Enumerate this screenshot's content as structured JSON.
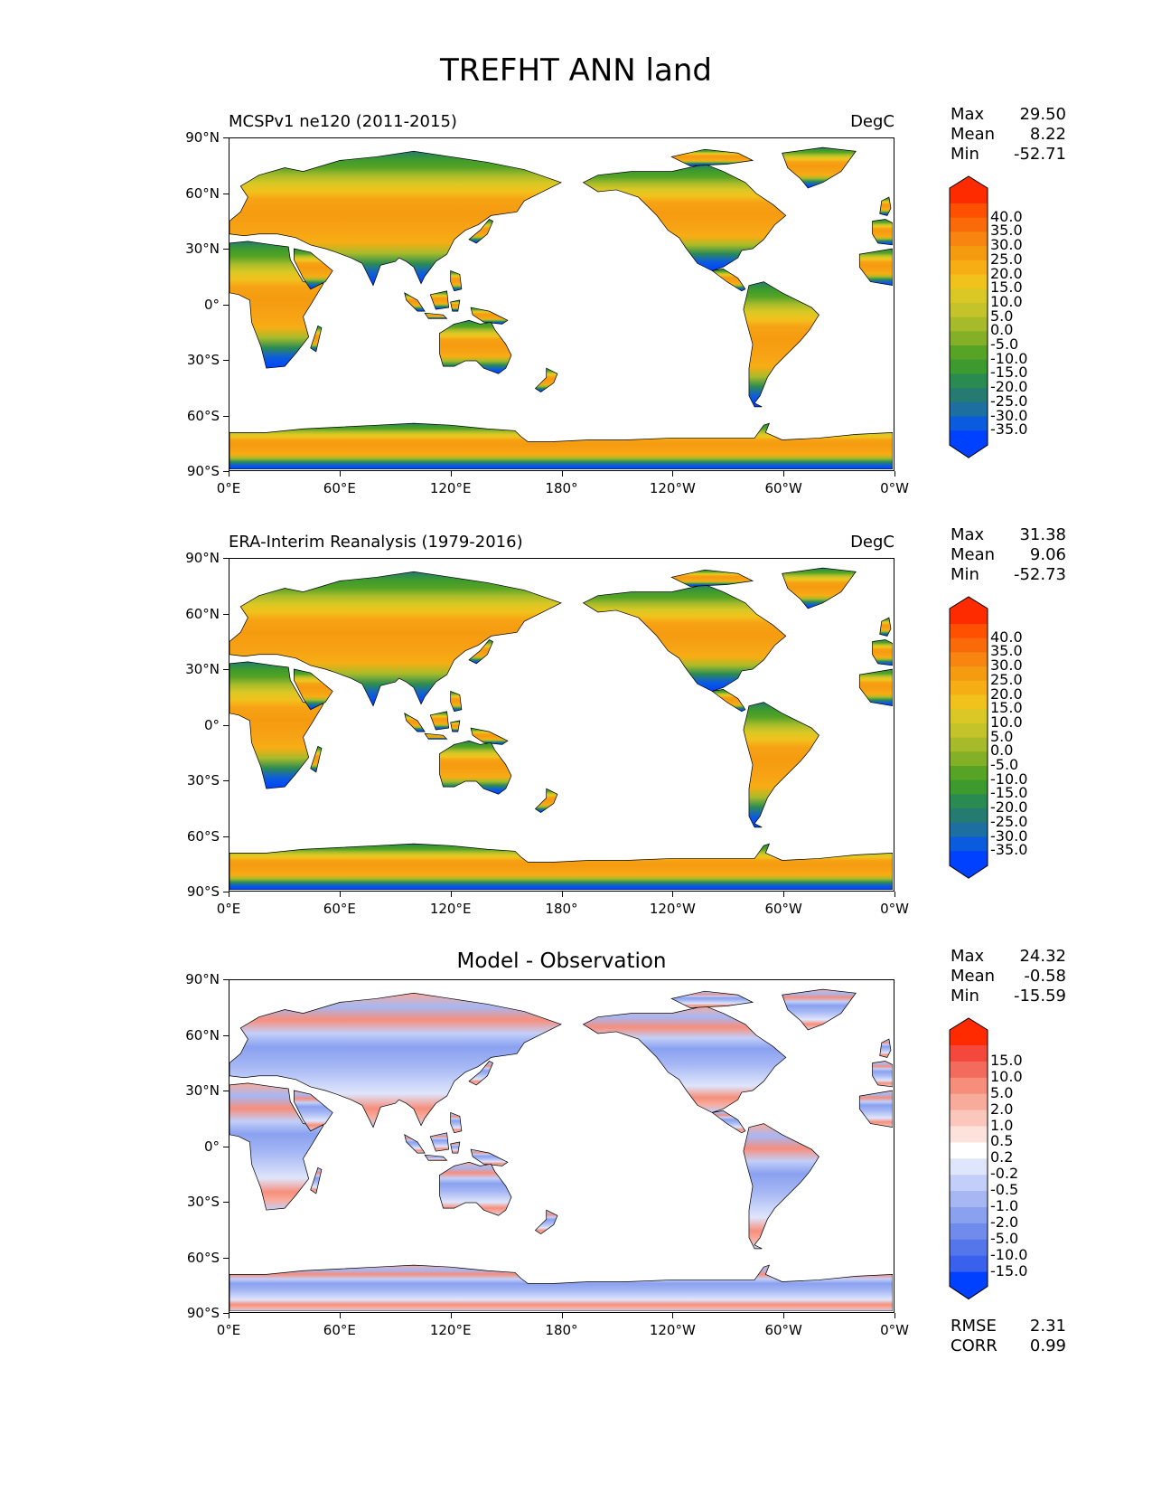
{
  "figure": {
    "title": "TREFHT ANN land"
  },
  "axes": {
    "lat_ticks": [
      "90°N",
      "60°N",
      "30°N",
      "0°",
      "30°S",
      "60°S",
      "90°S"
    ],
    "lon_ticks": [
      "0°E",
      "60°E",
      "120°E",
      "180°",
      "120°W",
      "60°W",
      "0°W"
    ]
  },
  "panels": [
    {
      "title": "MCSPv1 ne120 (2011-2015)",
      "units": "DegC",
      "stats": [
        {
          "label": "Max",
          "value": "29.50"
        },
        {
          "label": "Mean",
          "value": "8.22"
        },
        {
          "label": "Min",
          "value": "-52.71"
        }
      ],
      "colorbar": {
        "labels": [
          "40.0",
          "35.0",
          "30.0",
          "25.0",
          "20.0",
          "15.0",
          "10.0",
          "5.0",
          "0.0",
          "-5.0",
          "-10.0",
          "-15.0",
          "-20.0",
          "-25.0",
          "-30.0",
          "-35.0"
        ],
        "colors": [
          "#ff2b00",
          "#ff5000",
          "#fb6a08",
          "#f7850f",
          "#f59b10",
          "#f7ad14",
          "#f2c21c",
          "#d9c825",
          "#c4c32a",
          "#a7bb2a",
          "#83b026",
          "#56a325",
          "#3c9a2e",
          "#2a8b52",
          "#257b72",
          "#1d6fa2",
          "#0b5bdf",
          "#0040ff"
        ]
      }
    },
    {
      "title": "ERA-Interim Reanalysis (1979-2016)",
      "units": "DegC",
      "stats": [
        {
          "label": "Max",
          "value": "31.38"
        },
        {
          "label": "Mean",
          "value": "9.06"
        },
        {
          "label": "Min",
          "value": "-52.73"
        }
      ],
      "colorbar": {
        "labels": [
          "40.0",
          "35.0",
          "30.0",
          "25.0",
          "20.0",
          "15.0",
          "10.0",
          "5.0",
          "0.0",
          "-5.0",
          "-10.0",
          "-15.0",
          "-20.0",
          "-25.0",
          "-30.0",
          "-35.0"
        ],
        "colors": [
          "#ff2b00",
          "#ff5000",
          "#fb6a08",
          "#f7850f",
          "#f59b10",
          "#f7ad14",
          "#f2c21c",
          "#d9c825",
          "#c4c32a",
          "#a7bb2a",
          "#83b026",
          "#56a325",
          "#3c9a2e",
          "#2a8b52",
          "#257b72",
          "#1d6fa2",
          "#0b5bdf",
          "#0040ff"
        ]
      }
    },
    {
      "title": "Model - Observation",
      "units": "",
      "stats": [
        {
          "label": "Max",
          "value": "24.32"
        },
        {
          "label": "Mean",
          "value": "-0.58"
        },
        {
          "label": "Min",
          "value": "-15.59"
        }
      ],
      "extra_stats": [
        {
          "label": "RMSE",
          "value": "2.31"
        },
        {
          "label": "CORR",
          "value": "0.99"
        }
      ],
      "colorbar": {
        "labels": [
          "15.0",
          "10.0",
          "5.0",
          "2.0",
          "1.0",
          "0.5",
          "0.2",
          "-0.2",
          "-0.5",
          "-1.0",
          "-2.0",
          "-5.0",
          "-10.0",
          "-15.0"
        ],
        "colors": [
          "#ff2a00",
          "#f5483d",
          "#f26b5c",
          "#f78e7c",
          "#f9ab9b",
          "#fbc6bb",
          "#fde2dc",
          "#ffffff",
          "#dfe5fb",
          "#c3cff8",
          "#a6b7f4",
          "#8aa1f0",
          "#6f8bec",
          "#5576ea",
          "#3a60ee",
          "#0040ff"
        ]
      }
    }
  ],
  "icons": {
    "map_land": "world-land-icon"
  }
}
